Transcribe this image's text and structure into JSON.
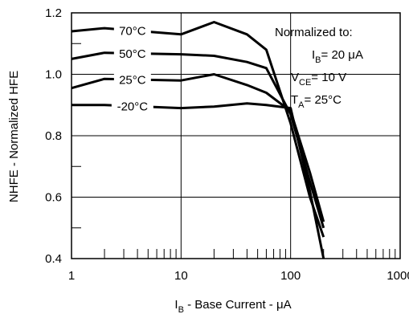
{
  "chart_data": {
    "type": "line",
    "title": "",
    "xlabel": {
      "prefix": "I",
      "sub": "B",
      "rest": " - Base Current - μA"
    },
    "ylabel": "NHFE - Normalized HFE",
    "xscale": "log",
    "xlim": [
      1,
      1000
    ],
    "ylim": [
      0.4,
      1.2
    ],
    "x_tick_labels": [
      "1",
      "10",
      "100",
      "1000"
    ],
    "y_tick_labels": [
      "0.4",
      "0.6",
      "0.8",
      "1.0",
      "1.2"
    ],
    "grid": true,
    "series": [
      {
        "name": "70°C",
        "x": [
          1,
          2,
          10,
          20,
          40,
          60,
          100,
          150,
          200
        ],
        "y": [
          1.14,
          1.15,
          1.13,
          1.17,
          1.13,
          1.08,
          0.84,
          0.6,
          0.47
        ]
      },
      {
        "name": "50°C",
        "x": [
          1,
          2,
          10,
          20,
          40,
          60,
          100,
          150,
          200
        ],
        "y": [
          1.05,
          1.07,
          1.065,
          1.06,
          1.04,
          1.02,
          0.87,
          0.65,
          0.5
        ]
      },
      {
        "name": "25°C",
        "x": [
          1,
          2,
          10,
          20,
          40,
          60,
          100,
          150,
          200
        ],
        "y": [
          0.955,
          0.985,
          0.98,
          1.0,
          0.965,
          0.94,
          0.88,
          0.68,
          0.52
        ]
      },
      {
        "name": "-20°C",
        "x": [
          1,
          2,
          10,
          20,
          40,
          60,
          100,
          150,
          200
        ],
        "y": [
          0.9,
          0.9,
          0.89,
          0.895,
          0.905,
          0.9,
          0.89,
          0.62,
          0.4
        ]
      }
    ],
    "annotation": {
      "heading": "Normalized to:",
      "lines": [
        {
          "prefix": "I",
          "sub": "B",
          "rest": "= 20 μA"
        },
        {
          "prefix": "V",
          "sub": "CE",
          "rest": "= 10 V"
        },
        {
          "prefix": "T",
          "sub": "A",
          "rest": "= 25°C"
        }
      ]
    }
  }
}
